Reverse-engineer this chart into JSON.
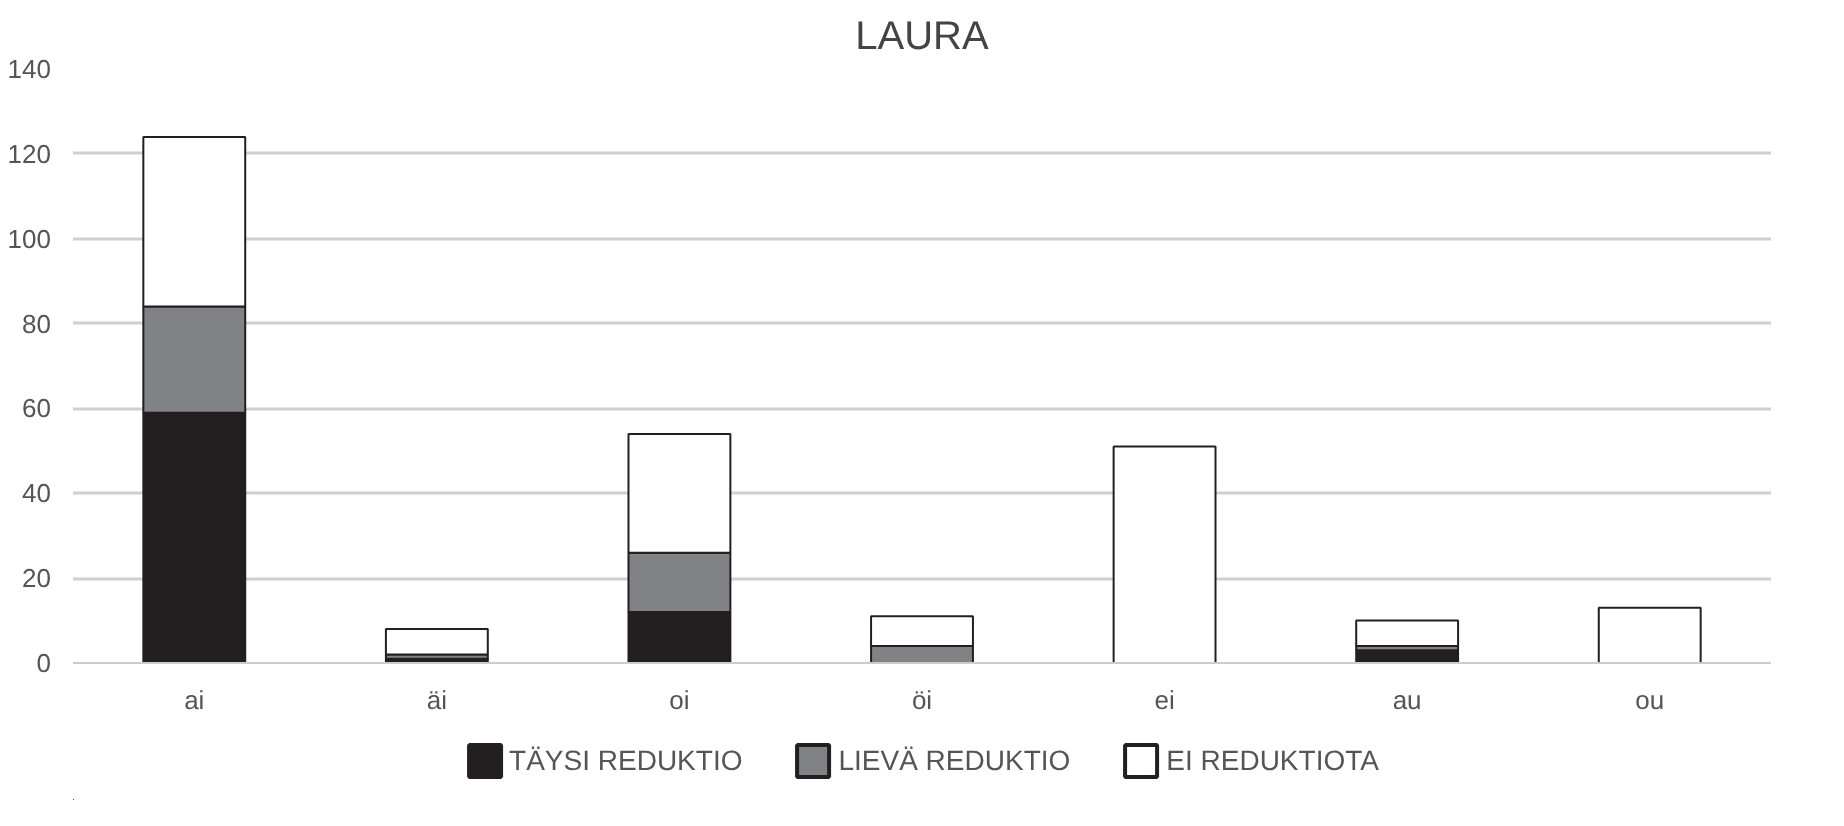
{
  "chart_data": {
    "type": "bar",
    "title": "LAURA",
    "stacked": true,
    "categories": [
      "ai",
      "äi",
      "oi",
      "öi",
      "ei",
      "au",
      "ou"
    ],
    "series": [
      {
        "name": "TÄYSI REDUKTIO",
        "color": "#231f20",
        "values": [
          59,
          1,
          12,
          0,
          0,
          3,
          0
        ]
      },
      {
        "name": "LIEVÄ REDUKTIO",
        "color": "#808285",
        "values": [
          25,
          1,
          14,
          4,
          0,
          1,
          0
        ]
      },
      {
        "name": "EI REDUKTIOTA",
        "color": "#ffffff",
        "values": [
          40,
          6,
          28,
          7,
          51,
          6,
          13
        ]
      }
    ],
    "ylim": [
      0,
      140
    ],
    "yticks": [
      0,
      20,
      40,
      60,
      80,
      100,
      120,
      140
    ],
    "grid": "y",
    "legend": "bottom"
  }
}
